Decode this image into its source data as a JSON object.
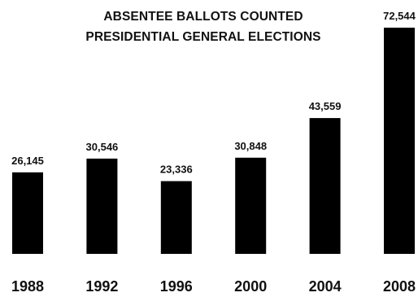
{
  "chart_data": {
    "type": "bar",
    "title": "ABSENTEE BALLOTS COUNTED",
    "subtitle": "PRESIDENTIAL GENERAL ELECTIONS",
    "categories": [
      "1988",
      "1992",
      "1996",
      "2000",
      "2004",
      "2008"
    ],
    "values": [
      26145,
      30546,
      23336,
      30848,
      43559,
      72544
    ],
    "value_labels": [
      "26,145",
      "30,546",
      "23,336",
      "30,848",
      "43,559",
      "72,544"
    ],
    "xlabel": "",
    "ylabel": "",
    "grid": false,
    "bar_color": "#000000"
  }
}
